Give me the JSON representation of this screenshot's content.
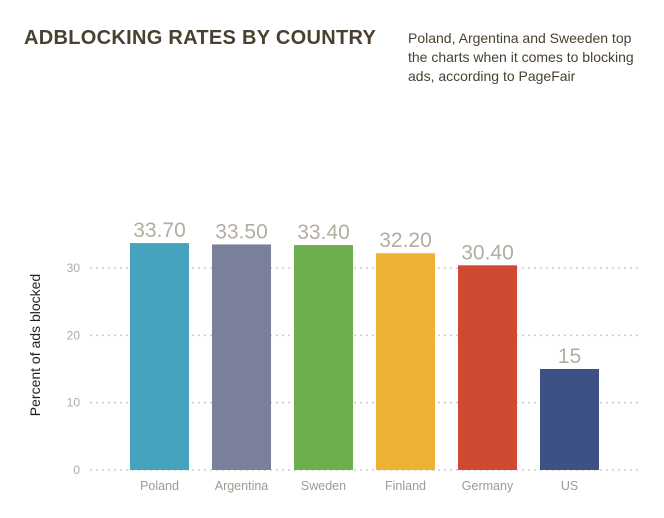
{
  "header": {
    "title": "ADBLOCKING RATES BY COUNTRY",
    "subtitle": "Poland, Argentina and Sweeden top the charts when it comes to blocking ads, according to PageFair"
  },
  "chart_data": {
    "type": "bar",
    "title": "ADBLOCKING RATES BY COUNTRY",
    "xlabel": "",
    "ylabel": "Percent of ads blocked",
    "ylim": [
      0,
      37
    ],
    "yticks": [
      0,
      10,
      20,
      30
    ],
    "grid": true,
    "categories": [
      "Poland",
      "Argentina",
      "Sweden",
      "Finland",
      "Germany",
      "US"
    ],
    "values": [
      33.7,
      33.5,
      33.4,
      32.2,
      30.4,
      15
    ],
    "value_labels": [
      "33.70",
      "33.50",
      "33.40",
      "32.20",
      "30.40",
      "15"
    ],
    "colors": [
      "#45a3bd",
      "#7a8099",
      "#6daf4c",
      "#edb234",
      "#d04a32",
      "#3e5185"
    ]
  }
}
